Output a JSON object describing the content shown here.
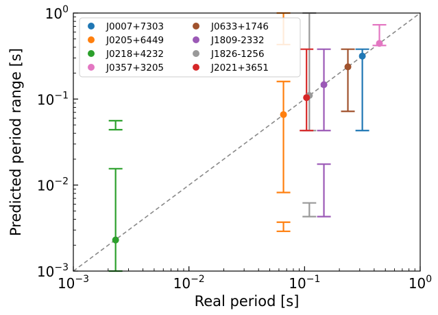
{
  "chart_data": {
    "type": "scatter",
    "xlabel": "Real period [s]",
    "ylabel": "Predicted period range [s]",
    "xscale": "log",
    "yscale": "log",
    "xlim": [
      0.001,
      1
    ],
    "ylim": [
      0.001,
      1
    ],
    "x_ticks": [
      {
        "value": 0.001,
        "base": "10",
        "exp": "−3"
      },
      {
        "value": 0.01,
        "base": "10",
        "exp": "−2"
      },
      {
        "value": 0.1,
        "base": "10",
        "exp": "−1"
      },
      {
        "value": 1,
        "base": "10",
        "exp": "0"
      }
    ],
    "y_ticks": [
      {
        "value": 0.001,
        "base": "10",
        "exp": "−3"
      },
      {
        "value": 0.01,
        "base": "10",
        "exp": "−2"
      },
      {
        "value": 0.1,
        "base": "10",
        "exp": "−1"
      },
      {
        "value": 1,
        "base": "10",
        "exp": "0"
      }
    ],
    "reference_line": {
      "style": "dashed",
      "color": "#888888",
      "relation": "y = x"
    },
    "legend_position": "top-left",
    "grid": false,
    "series": [
      {
        "name": "J0007+7303",
        "color": "#1f77b4",
        "x": 0.316,
        "y": 0.316,
        "ranges": [
          [
            0.043,
            0.38
          ]
        ]
      },
      {
        "name": "J0205+6449",
        "color": "#ff7f0e",
        "x": 0.0657,
        "y": 0.066,
        "ranges": [
          [
            0.0029,
            0.0037
          ],
          [
            0.0082,
            0.16
          ],
          [
            0.43,
            1.0
          ]
        ]
      },
      {
        "name": "J0218+4232",
        "color": "#2ca02c",
        "x": 0.00232,
        "y": 0.0023,
        "ranges": [
          [
            0.001,
            0.0155
          ],
          [
            0.044,
            0.056
          ]
        ]
      },
      {
        "name": "J0357+3205",
        "color": "#e377c2",
        "x": 0.444,
        "y": 0.444,
        "ranges": [
          [
            0.42,
            0.73
          ]
        ]
      },
      {
        "name": "J0633+1746",
        "color": "#a0522d",
        "x": 0.237,
        "y": 0.237,
        "ranges": [
          [
            0.072,
            0.38
          ]
        ]
      },
      {
        "name": "J1809-2332",
        "color": "#9b59b6",
        "x": 0.147,
        "y": 0.147,
        "ranges": [
          [
            0.0043,
            0.0175
          ],
          [
            0.043,
            0.38
          ]
        ]
      },
      {
        "name": "J1826-1256",
        "color": "#999999",
        "x": 0.11,
        "y": 0.11,
        "ranges": [
          [
            0.0043,
            0.0062
          ],
          [
            0.043,
            1.0
          ]
        ]
      },
      {
        "name": "J2021+3651",
        "color": "#d62728",
        "x": 0.104,
        "y": 0.104,
        "ranges": [
          [
            0.043,
            0.38
          ]
        ]
      }
    ]
  }
}
